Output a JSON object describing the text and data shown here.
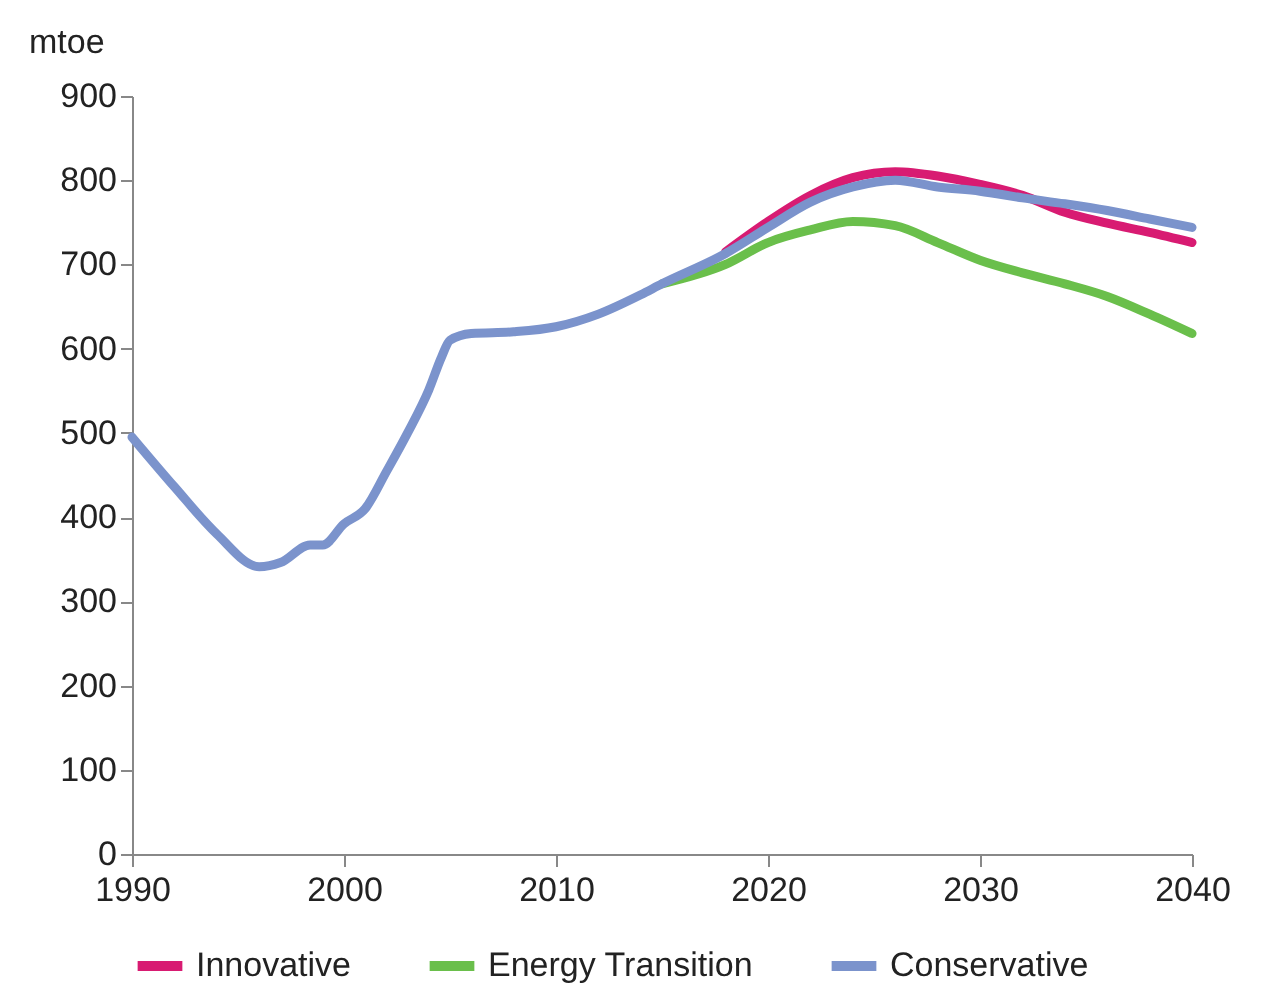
{
  "chart_data": {
    "type": "line",
    "ylabel": "mtoe",
    "xlim": [
      1990,
      2040
    ],
    "xticks": [
      1990,
      2000,
      2010,
      2020,
      2030,
      2040
    ],
    "ylim": [
      0,
      900
    ],
    "yticks": [
      0,
      100,
      200,
      300,
      400,
      500,
      600,
      700,
      800,
      900
    ],
    "grid": false,
    "legend": "bottom",
    "marker": "none",
    "line_style": "solid",
    "series": [
      {
        "name": "Innovative",
        "color": "#d81b72",
        "x": [
          2018,
          2020,
          2022,
          2024,
          2026,
          2028,
          2030,
          2032,
          2034,
          2036,
          2038,
          2040
        ],
        "values": [
          715,
          751,
          782,
          803,
          810,
          805,
          795,
          782,
          762,
          749,
          738,
          726
        ]
      },
      {
        "name": "Energy Transition",
        "color": "#6abf4b",
        "x": [
          2015,
          2018,
          2020,
          2022,
          2024,
          2026,
          2028,
          2030,
          2032,
          2034,
          2036,
          2038,
          2040
        ],
        "values": [
          677,
          700,
          726,
          741,
          751,
          746,
          726,
          705,
          690,
          677,
          662,
          641,
          618
        ]
      },
      {
        "name": "Conservative",
        "color": "#7b93cc",
        "x": [
          1990,
          1992,
          1994,
          1996,
          1997,
          1998.4,
          1999,
          2000,
          2001,
          2002,
          2003,
          2004,
          2004.6,
          2005,
          2006,
          2008,
          2010,
          2012,
          2014,
          2015,
          2018,
          2020,
          2022,
          2024,
          2026,
          2028,
          2030,
          2032,
          2034,
          2036,
          2038,
          2040
        ],
        "values": [
          495,
          436,
          380,
          341,
          346,
          367,
          367,
          392,
          410,
          454,
          500,
          551,
          590,
          610,
          618,
          620,
          626,
          641,
          664,
          677,
          713,
          744,
          774,
          792,
          800,
          792,
          787,
          779,
          772,
          764,
          754,
          744
        ]
      }
    ]
  }
}
